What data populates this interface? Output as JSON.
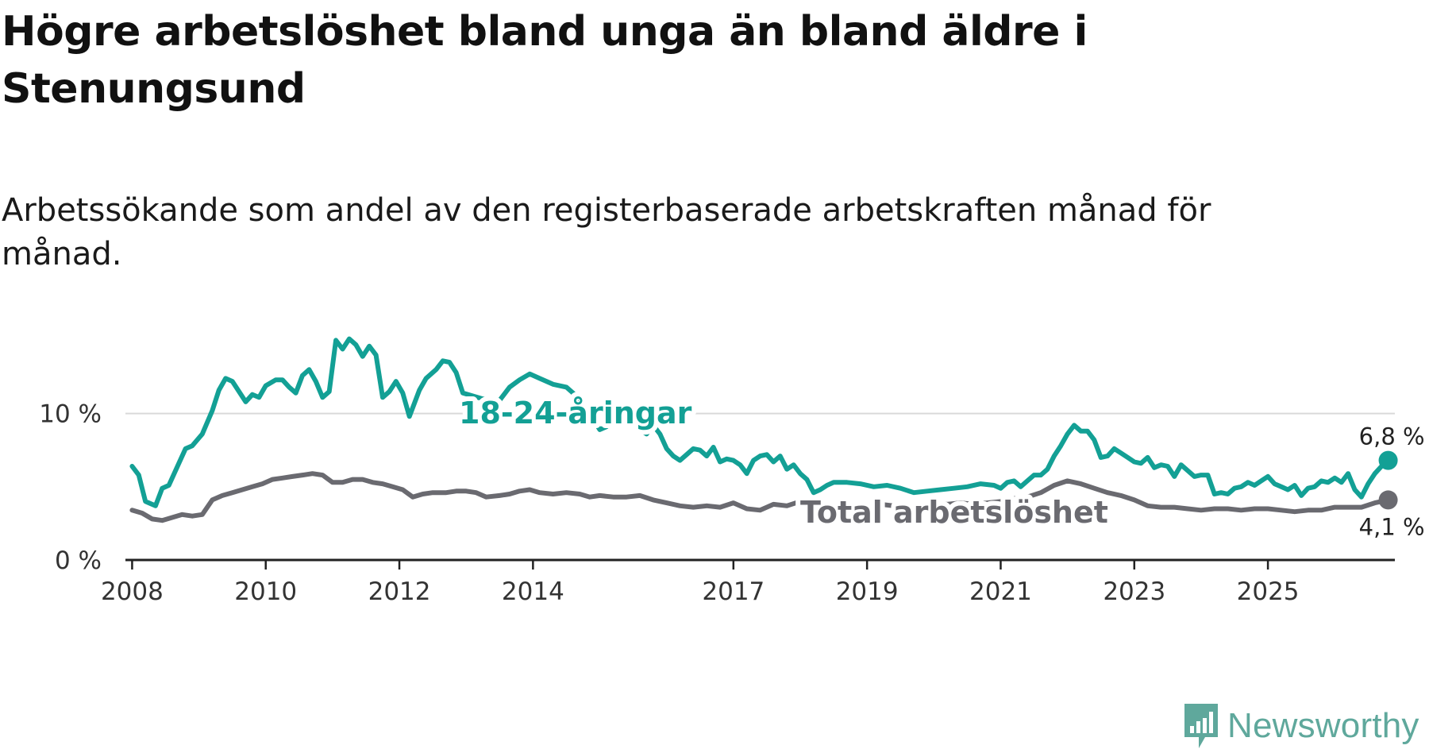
{
  "header": {
    "title": "Högre arbetslöshet bland unga än bland äldre i Stenungsund",
    "subtitle": "Arbetssökande som andel av den registerbaserade arbetskraften månad för månad."
  },
  "branding": {
    "name": "Newsworthy",
    "color": "#5fa89c"
  },
  "chart_data": {
    "type": "line",
    "title": "Högre arbetslöshet bland unga än bland äldre i Stenungsund",
    "subtitle": "Arbetssökande som andel av den registerbaserade arbetskraften månad för månad.",
    "xlabel": "",
    "ylabel": "",
    "xlim": [
      2007.9,
      2026.9
    ],
    "ylim": [
      0,
      16
    ],
    "x_ticks": [
      {
        "value": 2008,
        "label": "2008"
      },
      {
        "value": 2010,
        "label": "2010"
      },
      {
        "value": 2012,
        "label": "2012"
      },
      {
        "value": 2014,
        "label": "2014"
      },
      {
        "value": 2017,
        "label": "2017"
      },
      {
        "value": 2019,
        "label": "2019"
      },
      {
        "value": 2021,
        "label": "2021"
      },
      {
        "value": 2023,
        "label": "2023"
      },
      {
        "value": 2025,
        "label": "2025"
      }
    ],
    "y_ticks": [
      {
        "value": 0,
        "label": "0 %"
      },
      {
        "value": 10,
        "label": "10 %"
      }
    ],
    "series": [
      {
        "name": "18-24-åringar",
        "label": "18-24-åringar",
        "color": "#13a095",
        "end_label": "6,8 %",
        "points": [
          [
            2008.0,
            6.4
          ],
          [
            2008.1,
            5.8
          ],
          [
            2008.2,
            4.0
          ],
          [
            2008.35,
            3.7
          ],
          [
            2008.45,
            4.9
          ],
          [
            2008.55,
            5.1
          ],
          [
            2008.7,
            6.6
          ],
          [
            2008.8,
            7.6
          ],
          [
            2008.9,
            7.8
          ],
          [
            2009.05,
            8.6
          ],
          [
            2009.2,
            10.2
          ],
          [
            2009.3,
            11.6
          ],
          [
            2009.4,
            12.4
          ],
          [
            2009.5,
            12.2
          ],
          [
            2009.6,
            11.5
          ],
          [
            2009.7,
            10.8
          ],
          [
            2009.8,
            11.3
          ],
          [
            2009.9,
            11.1
          ],
          [
            2010.0,
            11.9
          ],
          [
            2010.15,
            12.3
          ],
          [
            2010.25,
            12.3
          ],
          [
            2010.35,
            11.8
          ],
          [
            2010.45,
            11.4
          ],
          [
            2010.55,
            12.6
          ],
          [
            2010.65,
            13.0
          ],
          [
            2010.75,
            12.2
          ],
          [
            2010.85,
            11.1
          ],
          [
            2010.95,
            11.5
          ],
          [
            2011.05,
            15.0
          ],
          [
            2011.15,
            14.4
          ],
          [
            2011.25,
            15.1
          ],
          [
            2011.35,
            14.7
          ],
          [
            2011.45,
            13.9
          ],
          [
            2011.55,
            14.6
          ],
          [
            2011.65,
            14.0
          ],
          [
            2011.75,
            11.1
          ],
          [
            2011.85,
            11.5
          ],
          [
            2011.95,
            12.2
          ],
          [
            2012.05,
            11.4
          ],
          [
            2012.15,
            9.8
          ],
          [
            2012.3,
            11.6
          ],
          [
            2012.4,
            12.4
          ],
          [
            2012.55,
            13.0
          ],
          [
            2012.65,
            13.6
          ],
          [
            2012.75,
            13.5
          ],
          [
            2012.85,
            12.8
          ],
          [
            2012.95,
            11.4
          ],
          [
            2013.1,
            11.2
          ],
          [
            2013.25,
            11.0
          ],
          [
            2013.4,
            10.9
          ],
          [
            2013.5,
            10.9
          ],
          [
            2013.65,
            11.8
          ],
          [
            2013.8,
            12.3
          ],
          [
            2013.95,
            12.7
          ],
          [
            2014.1,
            12.4
          ],
          [
            2014.3,
            12.0
          ],
          [
            2014.5,
            11.8
          ],
          [
            2014.7,
            11.0
          ],
          [
            2014.85,
            10.0
          ],
          [
            2015.0,
            8.9
          ],
          [
            2015.1,
            9.1
          ],
          [
            2015.2,
            9.5
          ],
          [
            2015.3,
            9.6
          ],
          [
            2015.4,
            9.9
          ],
          [
            2015.5,
            9.4
          ],
          [
            2015.6,
            8.9
          ],
          [
            2015.7,
            8.6
          ],
          [
            2015.8,
            9.2
          ],
          [
            2015.9,
            8.6
          ],
          [
            2016.0,
            7.6
          ],
          [
            2016.1,
            7.1
          ],
          [
            2016.2,
            6.8
          ],
          [
            2016.3,
            7.2
          ],
          [
            2016.4,
            7.6
          ],
          [
            2016.5,
            7.5
          ],
          [
            2016.6,
            7.1
          ],
          [
            2016.7,
            7.7
          ],
          [
            2016.8,
            6.7
          ],
          [
            2016.9,
            6.9
          ],
          [
            2017.0,
            6.8
          ],
          [
            2017.1,
            6.5
          ],
          [
            2017.2,
            5.9
          ],
          [
            2017.3,
            6.8
          ],
          [
            2017.4,
            7.1
          ],
          [
            2017.5,
            7.2
          ],
          [
            2017.6,
            6.7
          ],
          [
            2017.7,
            7.1
          ],
          [
            2017.8,
            6.2
          ],
          [
            2017.9,
            6.5
          ],
          [
            2018.0,
            5.9
          ],
          [
            2018.1,
            5.5
          ],
          [
            2018.2,
            4.6
          ],
          [
            2018.3,
            4.8
          ],
          [
            2018.4,
            5.1
          ],
          [
            2018.5,
            5.3
          ],
          [
            2018.7,
            5.3
          ],
          [
            2018.9,
            5.2
          ],
          [
            2019.1,
            5.0
          ],
          [
            2019.3,
            5.1
          ],
          [
            2019.5,
            4.9
          ],
          [
            2019.7,
            4.6
          ],
          [
            2019.9,
            4.7
          ],
          [
            2020.1,
            4.8
          ],
          [
            2020.3,
            4.9
          ],
          [
            2020.5,
            5.0
          ],
          [
            2020.7,
            5.2
          ],
          [
            2020.9,
            5.1
          ],
          [
            2021.0,
            4.9
          ],
          [
            2021.1,
            5.3
          ],
          [
            2021.2,
            5.4
          ],
          [
            2021.3,
            5.0
          ],
          [
            2021.4,
            5.4
          ],
          [
            2021.5,
            5.8
          ],
          [
            2021.6,
            5.8
          ],
          [
            2021.7,
            6.2
          ],
          [
            2021.8,
            7.1
          ],
          [
            2021.9,
            7.8
          ],
          [
            2022.0,
            8.6
          ],
          [
            2022.1,
            9.2
          ],
          [
            2022.2,
            8.8
          ],
          [
            2022.3,
            8.8
          ],
          [
            2022.4,
            8.2
          ],
          [
            2022.5,
            7.0
          ],
          [
            2022.6,
            7.1
          ],
          [
            2022.7,
            7.6
          ],
          [
            2022.8,
            7.3
          ],
          [
            2022.9,
            7.0
          ],
          [
            2023.0,
            6.7
          ],
          [
            2023.1,
            6.6
          ],
          [
            2023.2,
            7.0
          ],
          [
            2023.3,
            6.3
          ],
          [
            2023.4,
            6.5
          ],
          [
            2023.5,
            6.4
          ],
          [
            2023.6,
            5.7
          ],
          [
            2023.7,
            6.5
          ],
          [
            2023.8,
            6.1
          ],
          [
            2023.9,
            5.7
          ],
          [
            2024.0,
            5.8
          ],
          [
            2024.1,
            5.8
          ],
          [
            2024.2,
            4.5
          ],
          [
            2024.3,
            4.6
          ],
          [
            2024.4,
            4.5
          ],
          [
            2024.5,
            4.9
          ],
          [
            2024.6,
            5.0
          ],
          [
            2024.7,
            5.3
          ],
          [
            2024.8,
            5.1
          ],
          [
            2024.9,
            5.4
          ],
          [
            2025.0,
            5.7
          ],
          [
            2025.1,
            5.2
          ],
          [
            2025.2,
            5.0
          ],
          [
            2025.3,
            4.8
          ],
          [
            2025.4,
            5.1
          ],
          [
            2025.5,
            4.4
          ],
          [
            2025.6,
            4.9
          ],
          [
            2025.7,
            5.0
          ],
          [
            2025.8,
            5.4
          ],
          [
            2025.9,
            5.3
          ],
          [
            2026.0,
            5.6
          ],
          [
            2026.1,
            5.3
          ],
          [
            2026.2,
            5.9
          ],
          [
            2026.3,
            4.8
          ],
          [
            2026.4,
            4.3
          ],
          [
            2026.5,
            5.2
          ],
          [
            2026.6,
            5.9
          ],
          [
            2026.7,
            6.4
          ],
          [
            2026.8,
            6.8
          ]
        ]
      },
      {
        "name": "Total arbetslöshet",
        "label": "Total arbetslöshet",
        "color": "#6a6a70",
        "end_label": "4,1 %",
        "points": [
          [
            2008.0,
            3.4
          ],
          [
            2008.15,
            3.2
          ],
          [
            2008.3,
            2.8
          ],
          [
            2008.45,
            2.7
          ],
          [
            2008.6,
            2.9
          ],
          [
            2008.75,
            3.1
          ],
          [
            2008.9,
            3.0
          ],
          [
            2009.05,
            3.1
          ],
          [
            2009.2,
            4.1
          ],
          [
            2009.35,
            4.4
          ],
          [
            2009.5,
            4.6
          ],
          [
            2009.65,
            4.8
          ],
          [
            2009.8,
            5.0
          ],
          [
            2009.95,
            5.2
          ],
          [
            2010.1,
            5.5
          ],
          [
            2010.25,
            5.6
          ],
          [
            2010.4,
            5.7
          ],
          [
            2010.55,
            5.8
          ],
          [
            2010.7,
            5.9
          ],
          [
            2010.85,
            5.8
          ],
          [
            2011.0,
            5.3
          ],
          [
            2011.15,
            5.3
          ],
          [
            2011.3,
            5.5
          ],
          [
            2011.45,
            5.5
          ],
          [
            2011.6,
            5.3
          ],
          [
            2011.75,
            5.2
          ],
          [
            2011.9,
            5.0
          ],
          [
            2012.05,
            4.8
          ],
          [
            2012.2,
            4.3
          ],
          [
            2012.35,
            4.5
          ],
          [
            2012.5,
            4.6
          ],
          [
            2012.7,
            4.6
          ],
          [
            2012.85,
            4.7
          ],
          [
            2013.0,
            4.7
          ],
          [
            2013.15,
            4.6
          ],
          [
            2013.3,
            4.3
          ],
          [
            2013.5,
            4.4
          ],
          [
            2013.65,
            4.5
          ],
          [
            2013.8,
            4.7
          ],
          [
            2013.95,
            4.8
          ],
          [
            2014.1,
            4.6
          ],
          [
            2014.3,
            4.5
          ],
          [
            2014.5,
            4.6
          ],
          [
            2014.7,
            4.5
          ],
          [
            2014.85,
            4.3
          ],
          [
            2015.0,
            4.4
          ],
          [
            2015.2,
            4.3
          ],
          [
            2015.4,
            4.3
          ],
          [
            2015.6,
            4.4
          ],
          [
            2015.8,
            4.1
          ],
          [
            2016.0,
            3.9
          ],
          [
            2016.2,
            3.7
          ],
          [
            2016.4,
            3.6
          ],
          [
            2016.6,
            3.7
          ],
          [
            2016.8,
            3.6
          ],
          [
            2017.0,
            3.9
          ],
          [
            2017.2,
            3.5
          ],
          [
            2017.4,
            3.4
          ],
          [
            2017.6,
            3.8
          ],
          [
            2017.8,
            3.7
          ],
          [
            2018.0,
            4.0
          ],
          [
            2018.2,
            3.7
          ],
          [
            2018.4,
            3.5
          ],
          [
            2018.6,
            3.6
          ],
          [
            2018.8,
            3.7
          ],
          [
            2019.0,
            3.7
          ],
          [
            2019.2,
            3.8
          ],
          [
            2019.4,
            3.7
          ],
          [
            2019.6,
            3.6
          ],
          [
            2019.8,
            3.8
          ],
          [
            2020.0,
            3.9
          ],
          [
            2020.2,
            3.8
          ],
          [
            2020.4,
            3.9
          ],
          [
            2020.6,
            3.8
          ],
          [
            2020.8,
            3.9
          ],
          [
            2021.0,
            4.0
          ],
          [
            2021.2,
            4.2
          ],
          [
            2021.4,
            4.3
          ],
          [
            2021.6,
            4.6
          ],
          [
            2021.8,
            5.1
          ],
          [
            2022.0,
            5.4
          ],
          [
            2022.2,
            5.2
          ],
          [
            2022.4,
            4.9
          ],
          [
            2022.6,
            4.6
          ],
          [
            2022.8,
            4.4
          ],
          [
            2023.0,
            4.1
          ],
          [
            2023.2,
            3.7
          ],
          [
            2023.4,
            3.6
          ],
          [
            2023.6,
            3.6
          ],
          [
            2023.8,
            3.5
          ],
          [
            2024.0,
            3.4
          ],
          [
            2024.2,
            3.5
          ],
          [
            2024.4,
            3.5
          ],
          [
            2024.6,
            3.4
          ],
          [
            2024.8,
            3.5
          ],
          [
            2025.0,
            3.5
          ],
          [
            2025.2,
            3.4
          ],
          [
            2025.4,
            3.3
          ],
          [
            2025.6,
            3.4
          ],
          [
            2025.8,
            3.4
          ],
          [
            2026.0,
            3.6
          ],
          [
            2026.2,
            3.6
          ],
          [
            2026.4,
            3.6
          ],
          [
            2026.6,
            3.9
          ],
          [
            2026.8,
            4.1
          ]
        ]
      }
    ]
  }
}
